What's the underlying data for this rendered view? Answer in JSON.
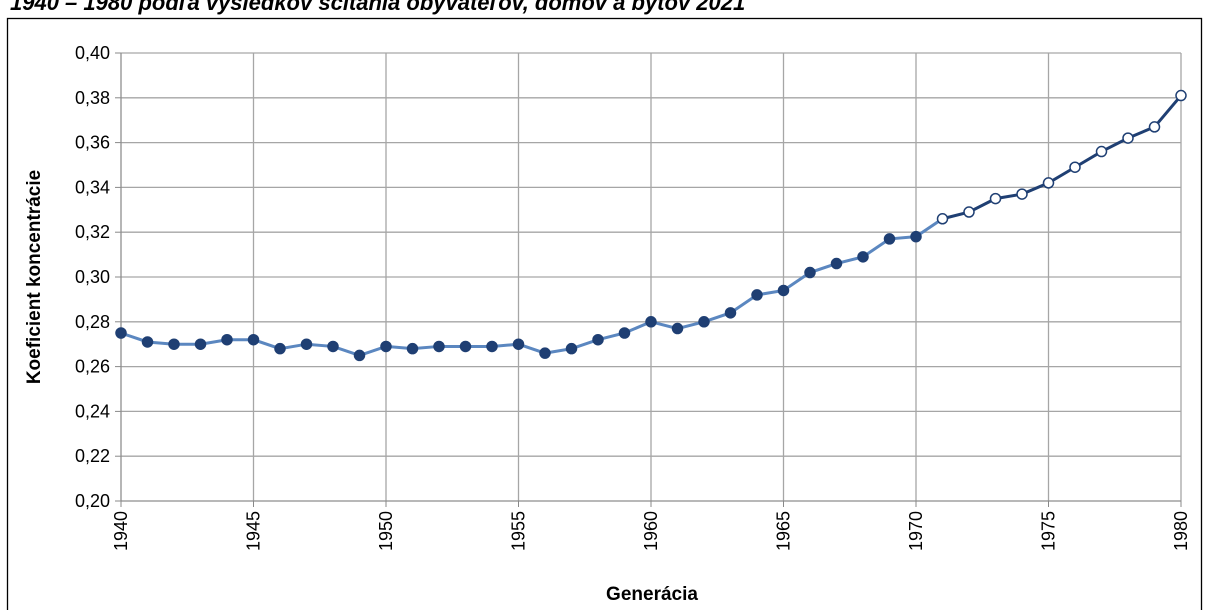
{
  "chart_data": {
    "type": "line",
    "title": "1940 – 1980 podľa výsledkov sčítania obyvateľov, domov a bytov 2021",
    "x_label": "Generácia",
    "y_label": "Koeficient koncentrácie",
    "xlim": [
      1940,
      1980
    ],
    "xticks": [
      1940,
      1945,
      1950,
      1955,
      1960,
      1965,
      1970,
      1975,
      1980
    ],
    "ylim": [
      0.2,
      0.4
    ],
    "yticks": [
      {
        "value": 0.2,
        "label": "0,20"
      },
      {
        "value": 0.22,
        "label": "0,22"
      },
      {
        "value": 0.24,
        "label": "0,24"
      },
      {
        "value": 0.26,
        "label": "0,26"
      },
      {
        "value": 0.28,
        "label": "0,28"
      },
      {
        "value": 0.3,
        "label": "0,30"
      },
      {
        "value": 0.32,
        "label": "0,32"
      },
      {
        "value": 0.34,
        "label": "0,34"
      },
      {
        "value": 0.36,
        "label": "0,36"
      },
      {
        "value": 0.38,
        "label": "0,38"
      },
      {
        "value": 0.4,
        "label": "0,40"
      }
    ],
    "grid": true,
    "series": [
      {
        "color": "#5b87c0",
        "marker_color": "#1f3f73",
        "marker": "filled",
        "x": [
          1940,
          1941,
          1942,
          1943,
          1944,
          1945,
          1946,
          1947,
          1948,
          1949,
          1950,
          1951,
          1952,
          1953,
          1954,
          1955,
          1956,
          1957,
          1958,
          1959,
          1960,
          1961,
          1962,
          1963,
          1964,
          1965,
          1966,
          1967,
          1968,
          1969,
          1970
        ],
        "values": [
          0.275,
          0.271,
          0.27,
          0.27,
          0.272,
          0.272,
          0.268,
          0.27,
          0.269,
          0.265,
          0.269,
          0.268,
          0.269,
          0.269,
          0.269,
          0.27,
          0.266,
          0.268,
          0.272,
          0.275,
          0.28,
          0.277,
          0.28,
          0.284,
          0.292,
          0.294,
          0.302,
          0.306,
          0.309,
          0.317,
          0.318
        ]
      },
      {
        "color": "#1f3f73",
        "marker_color": "#1f3f73",
        "marker": "open",
        "x": [
          1971,
          1972,
          1973,
          1974,
          1975,
          1976,
          1977,
          1978,
          1979,
          1980
        ],
        "values": [
          0.326,
          0.329,
          0.335,
          0.337,
          0.342,
          0.349,
          0.356,
          0.362,
          0.367,
          0.381
        ]
      }
    ]
  }
}
